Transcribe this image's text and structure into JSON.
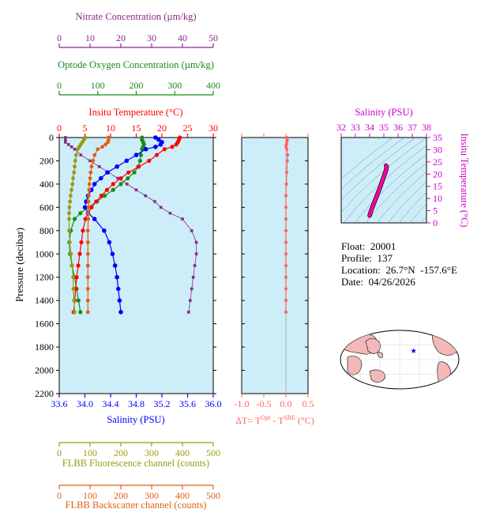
{
  "colors": {
    "nitrate": "#8b2a8b",
    "oxygen": "#1a8a1a",
    "temperature": "#ff0000",
    "salinity": "#0000ff",
    "fluorescence": "#9a9a10",
    "backscatter": "#e06010",
    "delta_t": "#ff6060",
    "ts_curve": "#ff00aa",
    "ts_axis": "#cc00cc",
    "plot_bg": "#cdeef8"
  },
  "info": {
    "float_label": "Float:",
    "float_value": "20001",
    "profile_label": "Profile:",
    "profile_value": "137",
    "location_label": "Location:",
    "location_value": "26.7°N  -157.6°E",
    "date_label": "Date:",
    "date_value": "04/26/2026"
  },
  "chart_data": [
    {
      "type": "line",
      "panel": "main-profile",
      "ylabel": "Pressure (decibar)",
      "ylim": [
        2200,
        0
      ],
      "yticks": [
        0,
        200,
        400,
        600,
        800,
        1000,
        1200,
        1400,
        1600,
        1800,
        2000,
        2200
      ],
      "axes": {
        "nitrate": {
          "label": "Nitrate Concentration (µm/kg)",
          "lim": [
            0,
            50
          ],
          "ticks": [
            0,
            10,
            20,
            30,
            40,
            50
          ],
          "position": "top"
        },
        "oxygen": {
          "label": "Optode Oxygen Concentration (µm/kg)",
          "lim": [
            0,
            400
          ],
          "ticks": [
            0,
            100,
            200,
            300,
            400
          ],
          "position": "top"
        },
        "temperature": {
          "label": "Insitu Temperature (°C)",
          "lim": [
            0,
            30
          ],
          "ticks": [
            0,
            5,
            10,
            15,
            20,
            25,
            30
          ],
          "position": "top"
        },
        "salinity": {
          "label": "Salinity (PSU)",
          "lim": [
            33.6,
            36.0
          ],
          "ticks": [
            "33.6",
            "34.0",
            "34.4",
            "34.8",
            "35.2",
            "35.6",
            "36.0"
          ],
          "position": "bottom"
        },
        "fluorescence": {
          "label": "FLBB Fluorescence channel (counts)",
          "lim": [
            0,
            500
          ],
          "ticks": [
            0,
            100,
            200,
            300,
            400,
            500
          ],
          "position": "bottom"
        },
        "backscatter": {
          "label": "FLBB Backscatter channel (counts)",
          "lim": [
            0,
            500
          ],
          "ticks": [
            0,
            100,
            200,
            300,
            400,
            500
          ],
          "position": "bottom"
        }
      },
      "series": [
        {
          "name": "Nitrate Concentration",
          "axis": "nitrate",
          "points": [
            [
              2,
              0
            ],
            [
              2,
              20
            ],
            [
              2,
              40
            ],
            [
              3,
              60
            ],
            [
              4,
              80
            ],
            [
              5,
              100
            ],
            [
              7,
              150
            ],
            [
              10,
              200
            ],
            [
              13,
              250
            ],
            [
              16,
              300
            ],
            [
              19,
              350
            ],
            [
              22,
              400
            ],
            [
              25,
              450
            ],
            [
              28,
              500
            ],
            [
              31,
              550
            ],
            [
              33,
              600
            ],
            [
              36,
              650
            ],
            [
              40,
              700
            ],
            [
              43,
              800
            ],
            [
              44.5,
              900
            ],
            [
              44.5,
              1000
            ],
            [
              44,
              1100
            ],
            [
              43.5,
              1200
            ],
            [
              43,
              1300
            ],
            [
              42.5,
              1400
            ],
            [
              42,
              1500
            ]
          ]
        },
        {
          "name": "Optode Oxygen Concentration",
          "axis": "oxygen",
          "points": [
            [
              215,
              0
            ],
            [
              215,
              20
            ],
            [
              218,
              40
            ],
            [
              220,
              60
            ],
            [
              218,
              80
            ],
            [
              215,
              100
            ],
            [
              212,
              150
            ],
            [
              210,
              200
            ],
            [
              205,
              250
            ],
            [
              195,
              300
            ],
            [
              178,
              350
            ],
            [
              160,
              400
            ],
            [
              140,
              450
            ],
            [
              118,
              500
            ],
            [
              98,
              550
            ],
            [
              75,
              600
            ],
            [
              55,
              650
            ],
            [
              40,
              700
            ],
            [
              30,
              800
            ],
            [
              26,
              900
            ],
            [
              28,
              1000
            ],
            [
              33,
              1100
            ],
            [
              40,
              1200
            ],
            [
              45,
              1300
            ],
            [
              50,
              1400
            ],
            [
              55,
              1500
            ]
          ]
        },
        {
          "name": "Insitu Temperature",
          "axis": "temperature",
          "points": [
            [
              23.5,
              0
            ],
            [
              23.3,
              20
            ],
            [
              23.1,
              40
            ],
            [
              22.8,
              60
            ],
            [
              22,
              80
            ],
            [
              20.5,
              100
            ],
            [
              19,
              150
            ],
            [
              17.5,
              200
            ],
            [
              15.5,
              250
            ],
            [
              13.5,
              300
            ],
            [
              12,
              350
            ],
            [
              10.5,
              400
            ],
            [
              9.3,
              450
            ],
            [
              8.2,
              500
            ],
            [
              7.2,
              550
            ],
            [
              6.3,
              600
            ],
            [
              5.6,
              650
            ],
            [
              5.1,
              700
            ],
            [
              4.6,
              800
            ],
            [
              4.3,
              900
            ],
            [
              4.0,
              1000
            ],
            [
              3.7,
              1100
            ],
            [
              3.4,
              1200
            ],
            [
              3.2,
              1300
            ],
            [
              3.0,
              1400
            ],
            [
              2.8,
              1500
            ]
          ]
        },
        {
          "name": "Salinity",
          "axis": "salinity",
          "points": [
            [
              35.1,
              0
            ],
            [
              35.15,
              20
            ],
            [
              35.2,
              40
            ],
            [
              35.18,
              60
            ],
            [
              35.1,
              80
            ],
            [
              34.95,
              100
            ],
            [
              34.8,
              150
            ],
            [
              34.65,
              200
            ],
            [
              34.5,
              250
            ],
            [
              34.35,
              300
            ],
            [
              34.25,
              350
            ],
            [
              34.15,
              400
            ],
            [
              34.1,
              450
            ],
            [
              34.05,
              500
            ],
            [
              34.02,
              550
            ],
            [
              34.0,
              600
            ],
            [
              34.05,
              650
            ],
            [
              34.15,
              700
            ],
            [
              34.3,
              800
            ],
            [
              34.38,
              900
            ],
            [
              34.43,
              1000
            ],
            [
              34.47,
              1100
            ],
            [
              34.5,
              1200
            ],
            [
              34.52,
              1300
            ],
            [
              34.54,
              1400
            ],
            [
              34.56,
              1500
            ]
          ]
        },
        {
          "name": "FLBB Fluorescence channel",
          "axis": "fluorescence",
          "points": [
            [
              85,
              0
            ],
            [
              80,
              20
            ],
            [
              75,
              40
            ],
            [
              70,
              60
            ],
            [
              65,
              80
            ],
            [
              60,
              100
            ],
            [
              55,
              150
            ],
            [
              52,
              200
            ],
            [
              50,
              250
            ],
            [
              48,
              300
            ],
            [
              45,
              350
            ],
            [
              43,
              400
            ],
            [
              40,
              450
            ],
            [
              37,
              500
            ],
            [
              35,
              550
            ],
            [
              33,
              600
            ],
            [
              32,
              650
            ],
            [
              32,
              700
            ],
            [
              32,
              800
            ],
            [
              34,
              900
            ],
            [
              38,
              1000
            ],
            [
              42,
              1100
            ],
            [
              45,
              1200
            ],
            [
              46,
              1300
            ],
            [
              48,
              1400
            ],
            [
              50,
              1500
            ]
          ]
        },
        {
          "name": "FLBB Backscatter channel",
          "axis": "backscatter",
          "points": [
            [
              160,
              0
            ],
            [
              160,
              20
            ],
            [
              158,
              40
            ],
            [
              150,
              60
            ],
            [
              140,
              80
            ],
            [
              125,
              100
            ],
            [
              115,
              150
            ],
            [
              110,
              200
            ],
            [
              105,
              250
            ],
            [
              102,
              300
            ],
            [
              100,
              350
            ],
            [
              98,
              400
            ],
            [
              97,
              450
            ],
            [
              96,
              500
            ],
            [
              95,
              550
            ],
            [
              95,
              600
            ],
            [
              94,
              650
            ],
            [
              94,
              700
            ],
            [
              93,
              800
            ],
            [
              93,
              900
            ],
            [
              93,
              1000
            ],
            [
              93,
              1100
            ],
            [
              93,
              1200
            ],
            [
              93,
              1300
            ],
            [
              93,
              1400
            ],
            [
              93,
              1500
            ]
          ]
        }
      ]
    },
    {
      "type": "line",
      "panel": "delta-t",
      "xlabel": "ΔT= T",
      "xlabel_sup1": "Opt",
      "xlabel_mid": " - T",
      "xlabel_sup2": "SBE",
      "xlabel_tail": " (°C)",
      "xlim": [
        -1.0,
        0.5
      ],
      "xticks": [
        "-1.0",
        "-0.5",
        "0.0",
        "0.5"
      ],
      "ylim": [
        2200,
        0
      ],
      "series": [
        {
          "name": "Temperature difference",
          "points": [
            [
              0.02,
              0
            ],
            [
              0.03,
              20
            ],
            [
              0.02,
              40
            ],
            [
              0.01,
              60
            ],
            [
              0.0,
              80
            ],
            [
              0.02,
              100
            ],
            [
              0.04,
              150
            ],
            [
              0.03,
              200
            ],
            [
              0.02,
              300
            ],
            [
              0.01,
              400
            ],
            [
              0.0,
              500
            ],
            [
              0.0,
              600
            ],
            [
              0.0,
              700
            ],
            [
              0.0,
              800
            ],
            [
              0.0,
              900
            ],
            [
              0.0,
              1000
            ],
            [
              0.0,
              1100
            ],
            [
              0.0,
              1200
            ],
            [
              0.0,
              1300
            ],
            [
              0.0,
              1400
            ],
            [
              0.0,
              1500
            ]
          ]
        }
      ]
    },
    {
      "type": "line",
      "panel": "ts-diagram",
      "xlabel": "Salinity (PSU)",
      "ylabel": "Insitu Temperature (°C)",
      "xlim": [
        32,
        38
      ],
      "ylim": [
        0,
        35
      ],
      "xticks": [
        32,
        33,
        34,
        35,
        36,
        37,
        38
      ],
      "yticks": [
        0,
        5,
        10,
        15,
        20,
        25,
        30,
        35
      ],
      "grid": "density contours",
      "series": [
        {
          "name": "T-S profile",
          "points": [
            [
              34.0,
              3.0
            ],
            [
              34.1,
              5.0
            ],
            [
              34.3,
              8.0
            ],
            [
              34.5,
              11.0
            ],
            [
              34.7,
              14.0
            ],
            [
              34.85,
              16.5
            ],
            [
              35.0,
              19.0
            ],
            [
              35.15,
              21.5
            ],
            [
              35.2,
              23.0
            ],
            [
              35.15,
              23.5
            ]
          ]
        }
      ]
    },
    {
      "type": "scatter",
      "panel": "location-map",
      "series": [
        {
          "name": "Float location",
          "points": [
            [
              -157.6,
              26.7
            ]
          ]
        }
      ]
    }
  ]
}
